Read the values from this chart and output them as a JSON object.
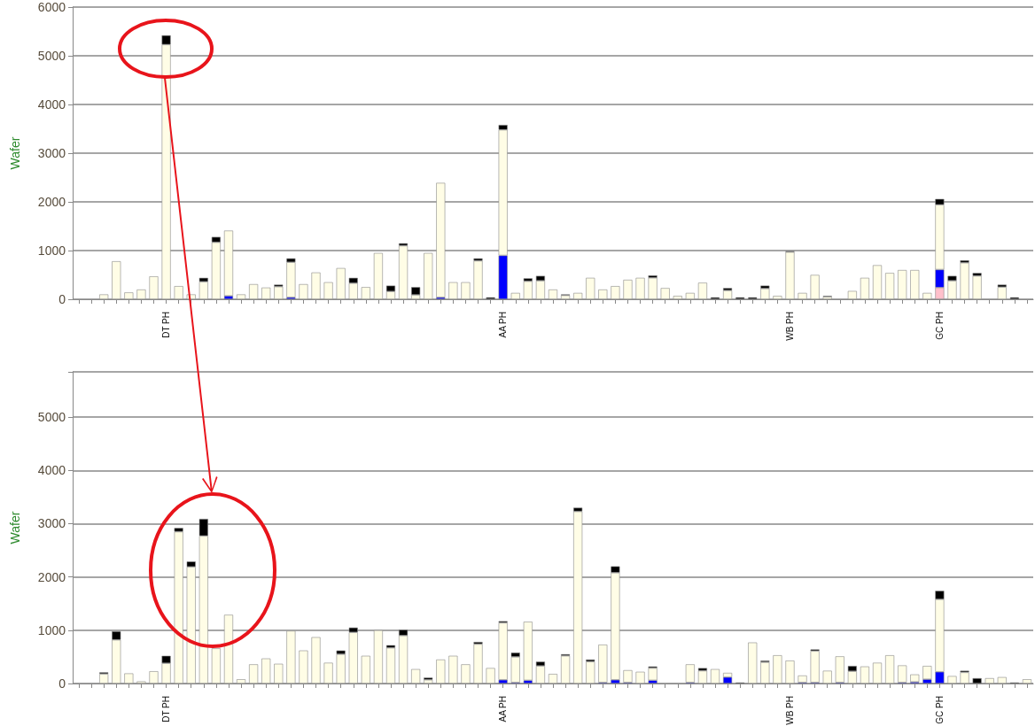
{
  "chart_data": [
    {
      "type": "bar",
      "ylabel": "Wafer",
      "stacked": true,
      "grid": "y",
      "ylim": [
        0,
        6000
      ],
      "yticks": [
        0,
        1000,
        2000,
        3000,
        4000,
        5000,
        6000
      ],
      "categories": [
        null,
        null,
        null,
        null,
        null,
        null,
        null,
        "DT PH",
        null,
        null,
        null,
        null,
        null,
        null,
        null,
        null,
        null,
        null,
        null,
        null,
        null,
        null,
        null,
        null,
        null,
        null,
        null,
        null,
        null,
        null,
        null,
        null,
        null,
        null,
        "AA PH",
        null,
        null,
        null,
        null,
        null,
        null,
        null,
        null,
        null,
        null,
        null,
        null,
        null,
        null,
        null,
        null,
        null,
        null,
        null,
        null,
        null,
        null,
        "WB PH",
        null,
        null,
        null,
        null,
        null,
        null,
        null,
        null,
        null,
        null,
        null,
        "GC PH",
        null,
        null,
        null,
        null,
        null,
        null,
        null
      ],
      "series": [
        {
          "color": "#ffc0cb",
          "values": [
            null,
            null,
            null,
            null,
            null,
            null,
            null,
            null,
            null,
            null,
            null,
            null,
            null,
            null,
            null,
            null,
            null,
            null,
            null,
            null,
            null,
            null,
            null,
            null,
            null,
            null,
            null,
            null,
            null,
            null,
            null,
            null,
            null,
            null,
            null,
            null,
            null,
            null,
            null,
            null,
            null,
            null,
            null,
            null,
            null,
            null,
            null,
            null,
            null,
            null,
            null,
            null,
            null,
            null,
            null,
            null,
            null,
            null,
            null,
            null,
            null,
            null,
            null,
            null,
            null,
            null,
            null,
            null,
            null,
            240,
            null,
            null,
            null,
            null,
            null,
            null,
            null
          ]
        },
        {
          "color": "#0000ff",
          "values": [
            null,
            null,
            null,
            null,
            null,
            null,
            null,
            null,
            null,
            null,
            null,
            null,
            70,
            null,
            null,
            null,
            null,
            40,
            null,
            null,
            null,
            null,
            null,
            null,
            null,
            null,
            null,
            null,
            null,
            40,
            null,
            null,
            null,
            null,
            900,
            null,
            null,
            null,
            null,
            null,
            null,
            null,
            null,
            null,
            null,
            null,
            null,
            null,
            null,
            null,
            null,
            null,
            null,
            null,
            null,
            null,
            null,
            null,
            null,
            null,
            null,
            null,
            null,
            null,
            null,
            null,
            null,
            null,
            null,
            370,
            null,
            null,
            null,
            null,
            null,
            null,
            null
          ]
        },
        {
          "color": "#fffde6",
          "values": [
            null,
            null,
            100,
            780,
            140,
            200,
            470,
            5230,
            270,
            100,
            360,
            1170,
            1340,
            100,
            310,
            240,
            260,
            720,
            310,
            550,
            350,
            640,
            330,
            250,
            950,
            160,
            1100,
            90,
            950,
            2350,
            350,
            350,
            790,
            null,
            2580,
            130,
            370,
            380,
            200,
            80,
            130,
            440,
            200,
            270,
            400,
            440,
            440,
            230,
            70,
            130,
            340,
            null,
            180,
            null,
            null,
            220,
            70,
            970,
            130,
            500,
            50,
            null,
            170,
            440,
            700,
            540,
            600,
            600,
            130,
            1330,
            380,
            750,
            480,
            null,
            250,
            null,
            null
          ]
        },
        {
          "color": "#000000",
          "values": [
            null,
            null,
            null,
            null,
            null,
            null,
            null,
            190,
            null,
            null,
            80,
            110,
            null,
            null,
            null,
            null,
            40,
            80,
            null,
            null,
            null,
            null,
            110,
            null,
            null,
            120,
            50,
            160,
            null,
            null,
            null,
            null,
            50,
            40,
            100,
            null,
            60,
            100,
            null,
            20,
            null,
            null,
            null,
            null,
            null,
            null,
            50,
            null,
            null,
            null,
            null,
            40,
            50,
            40,
            40,
            60,
            null,
            20,
            null,
            null,
            20,
            null,
            null,
            null,
            null,
            null,
            null,
            null,
            null,
            120,
            100,
            50,
            60,
            null,
            50,
            40,
            null
          ]
        }
      ]
    },
    {
      "type": "bar",
      "ylabel": "Wafer",
      "stacked": true,
      "grid": "y",
      "ylim": [
        0,
        5850
      ],
      "yticks": [
        0,
        1000,
        2000,
        3000,
        4000,
        5000
      ],
      "categories": [
        null,
        null,
        null,
        null,
        null,
        null,
        null,
        "DT PH",
        null,
        null,
        null,
        null,
        null,
        null,
        null,
        null,
        null,
        null,
        null,
        null,
        null,
        null,
        null,
        null,
        null,
        null,
        null,
        null,
        null,
        null,
        null,
        null,
        null,
        null,
        "AA PH",
        null,
        null,
        null,
        null,
        null,
        null,
        null,
        null,
        null,
        null,
        null,
        null,
        null,
        null,
        null,
        null,
        null,
        null,
        null,
        null,
        null,
        null,
        "WB PH",
        null,
        null,
        null,
        null,
        null,
        null,
        null,
        null,
        null,
        null,
        null,
        "GC PH",
        null,
        null,
        null,
        null,
        null,
        null,
        null
      ],
      "series": [
        {
          "color": "#0000ff",
          "values": [
            null,
            null,
            null,
            null,
            null,
            null,
            null,
            null,
            null,
            null,
            null,
            null,
            null,
            null,
            null,
            null,
            null,
            null,
            null,
            null,
            null,
            null,
            null,
            null,
            null,
            null,
            null,
            null,
            null,
            null,
            null,
            null,
            null,
            null,
            70,
            20,
            60,
            null,
            null,
            null,
            null,
            null,
            20,
            70,
            20,
            null,
            60,
            null,
            null,
            20,
            null,
            null,
            120,
            null,
            null,
            null,
            null,
            null,
            20,
            20,
            null,
            20,
            null,
            null,
            null,
            null,
            20,
            30,
            80,
            220,
            null,
            null,
            null,
            null,
            null,
            null,
            null
          ]
        },
        {
          "color": "#fffde6",
          "values": [
            null,
            null,
            180,
            820,
            190,
            40,
            230,
            380,
            2850,
            2190,
            2770,
            660,
            1290,
            80,
            360,
            470,
            370,
            990,
            620,
            870,
            390,
            550,
            960,
            520,
            1000,
            670,
            900,
            270,
            70,
            450,
            520,
            360,
            740,
            290,
            1070,
            480,
            1100,
            330,
            180,
            520,
            3230,
            410,
            710,
            2010,
            230,
            220,
            230,
            null,
            null,
            340,
            240,
            270,
            80,
            null,
            770,
            400,
            530,
            430,
            130,
            590,
            240,
            490,
            230,
            320,
            390,
            530,
            320,
            140,
            250,
            1360,
            140,
            210,
            null,
            100,
            120,
            null,
            80
          ]
        },
        {
          "color": "#000000",
          "values": [
            null,
            null,
            30,
            160,
            null,
            null,
            null,
            140,
            70,
            100,
            320,
            null,
            null,
            null,
            null,
            null,
            null,
            null,
            null,
            null,
            null,
            70,
            90,
            null,
            null,
            50,
            110,
            null,
            40,
            null,
            null,
            null,
            40,
            null,
            30,
            80,
            null,
            80,
            null,
            30,
            70,
            40,
            null,
            120,
            null,
            null,
            30,
            null,
            null,
            null,
            50,
            null,
            null,
            20,
            null,
            30,
            null,
            null,
            null,
            30,
            null,
            null,
            100,
            null,
            null,
            null,
            null,
            null,
            null,
            160,
            null,
            30,
            100,
            null,
            null,
            20,
            null
          ]
        }
      ]
    }
  ]
}
